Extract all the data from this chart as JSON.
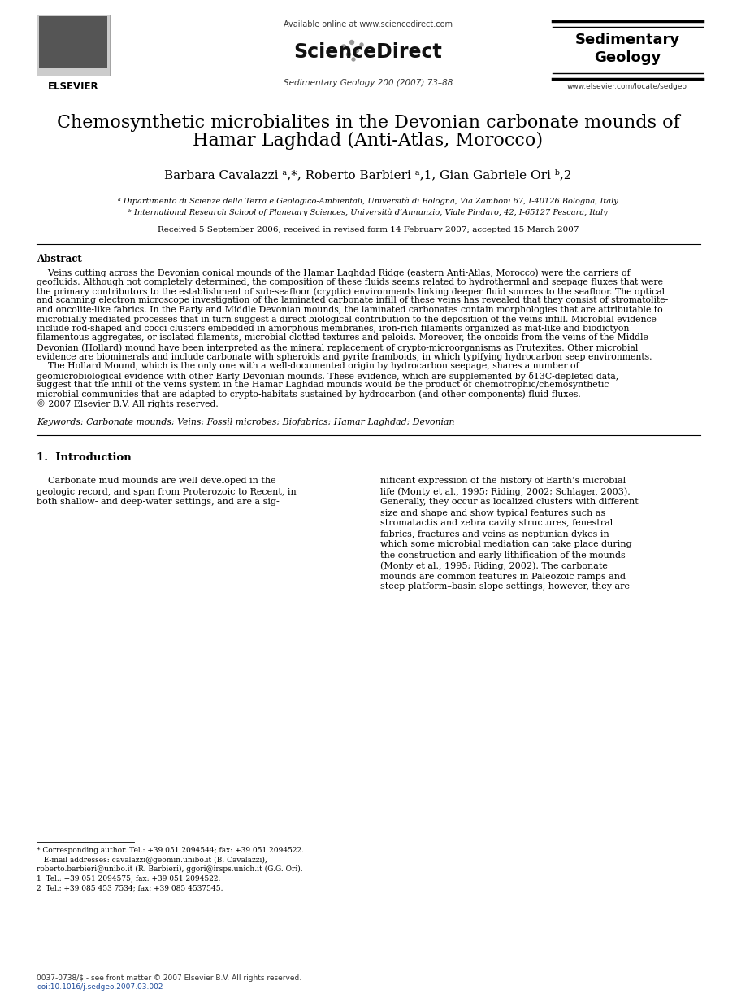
{
  "bg_color": "#ffffff",
  "header_available": "Available online at www.sciencedirect.com",
  "header_sciencedirect": "ScienceDirect",
  "header_journal_name": "Sedimentary\nGeology",
  "header_journal_info": "Sedimentary Geology 200 (2007) 73–88",
  "header_elsevier": "ELSEVIER",
  "header_url": "www.elsevier.com/locate/sedgeo",
  "title_line1": "Chemosynthetic microbialites in the Devonian carbonate mounds of",
  "title_line2": "Hamar Laghdad (Anti-Atlas, Morocco)",
  "authors": "Barbara Cavalazzi ᵃ,*, Roberto Barbieri ᵃ,1, Gian Gabriele Ori ᵇ,2",
  "affil_a": "ᵃ Dipartimento di Scienze della Terra e Geologico-Ambientali, Università di Bologna, Via Zamboni 67, I-40126 Bologna, Italy",
  "affil_b": "ᵇ International Research School of Planetary Sciences, Università d’Annunzio, Viale Pindaro, 42, I-65127 Pescara, Italy",
  "received": "Received 5 September 2006; received in revised form 14 February 2007; accepted 15 March 2007",
  "abstract_heading": "Abstract",
  "abstract_lines": [
    "    Veins cutting across the Devonian conical mounds of the Hamar Laghdad Ridge (eastern Anti-Atlas, Morocco) were the carriers of",
    "geofluids. Although not completely determined, the composition of these fluids seems related to hydrothermal and seepage fluxes that were",
    "the primary contributors to the establishment of sub-seafloor (cryptic) environments linking deeper fluid sources to the seafloor. The optical",
    "and scanning electron microscope investigation of the laminated carbonate infill of these veins has revealed that they consist of stromatolite-",
    "and oncolite-like fabrics. In the Early and Middle Devonian mounds, the laminated carbonates contain morphologies that are attributable to",
    "microbially mediated processes that in turn suggest a direct biological contribution to the deposition of the veins infill. Microbial evidence",
    "include rod-shaped and cocci clusters embedded in amorphous membranes, iron-rich filaments organized as mat-like and biodictyon",
    "filamentous aggregates, or isolated filaments, microbial clotted textures and peloids. Moreover, the oncoids from the veins of the Middle",
    "Devonian (Hollard) mound have been interpreted as the mineral replacement of crypto-microorganisms as Frutexites. Other microbial",
    "evidence are biominerals and include carbonate with spheroids and pyrite framboids, in which typifying hydrocarbon seep environments.",
    "    The Hollard Mound, which is the only one with a well-documented origin by hydrocarbon seepage, shares a number of",
    "geomicrobiological evidence with other Early Devonian mounds. These evidence, which are supplemented by δ13C-depleted data,",
    "suggest that the infill of the veins system in the Hamar Laghdad mounds would be the product of chemotrophic/chemosynthetic",
    "microbial communities that are adapted to crypto-habitats sustained by hydrocarbon (and other components) fluid fluxes.",
    "© 2007 Elsevier B.V. All rights reserved."
  ],
  "keywords": "Keywords: Carbonate mounds; Veins; Fossil microbes; Biofabrics; Hamar Laghdad; Devonian",
  "sec1_heading": "1.  Introduction",
  "sec1_col1_lines": [
    "    Carbonate mud mounds are well developed in the",
    "geologic record, and span from Proterozoic to Recent, in",
    "both shallow- and deep-water settings, and are a sig-"
  ],
  "sec1_col2_lines": [
    "nificant expression of the history of Earth’s microbial",
    "life (Monty et al., 1995; Riding, 2002; Schlager, 2003).",
    "Generally, they occur as localized clusters with different",
    "size and shape and show typical features such as",
    "stromatactis and zebra cavity structures, fenestral",
    "fabrics, fractures and veins as neptunian dykes in",
    "which some microbial mediation can take place during",
    "the construction and early lithification of the mounds",
    "(Monty et al., 1995; Riding, 2002). The carbonate",
    "mounds are common features in Paleozoic ramps and",
    "steep platform–basin slope settings, however, they are"
  ],
  "fn_line": "* Corresponding author. Tel.: +39 051 2094544; fax: +39 051 2094522.",
  "fn_email1": "   E-mail addresses: cavalazzi@geomin.unibo.it (B. Cavalazzi),",
  "fn_email2": "roberto.barbieri@unibo.it (R. Barbieri), ggori@irsps.unich.it (G.G. Ori).",
  "fn_1": "1  Tel.: +39 051 2094575; fax: +39 051 2094522.",
  "fn_2": "2  Tel.: +39 085 453 7534; fax: +39 085 4537545.",
  "footer_line1": "0037-0738/$ - see front matter © 2007 Elsevier B.V. All rights reserved.",
  "footer_line2": "doi:10.1016/j.sedgeo.2007.03.002"
}
